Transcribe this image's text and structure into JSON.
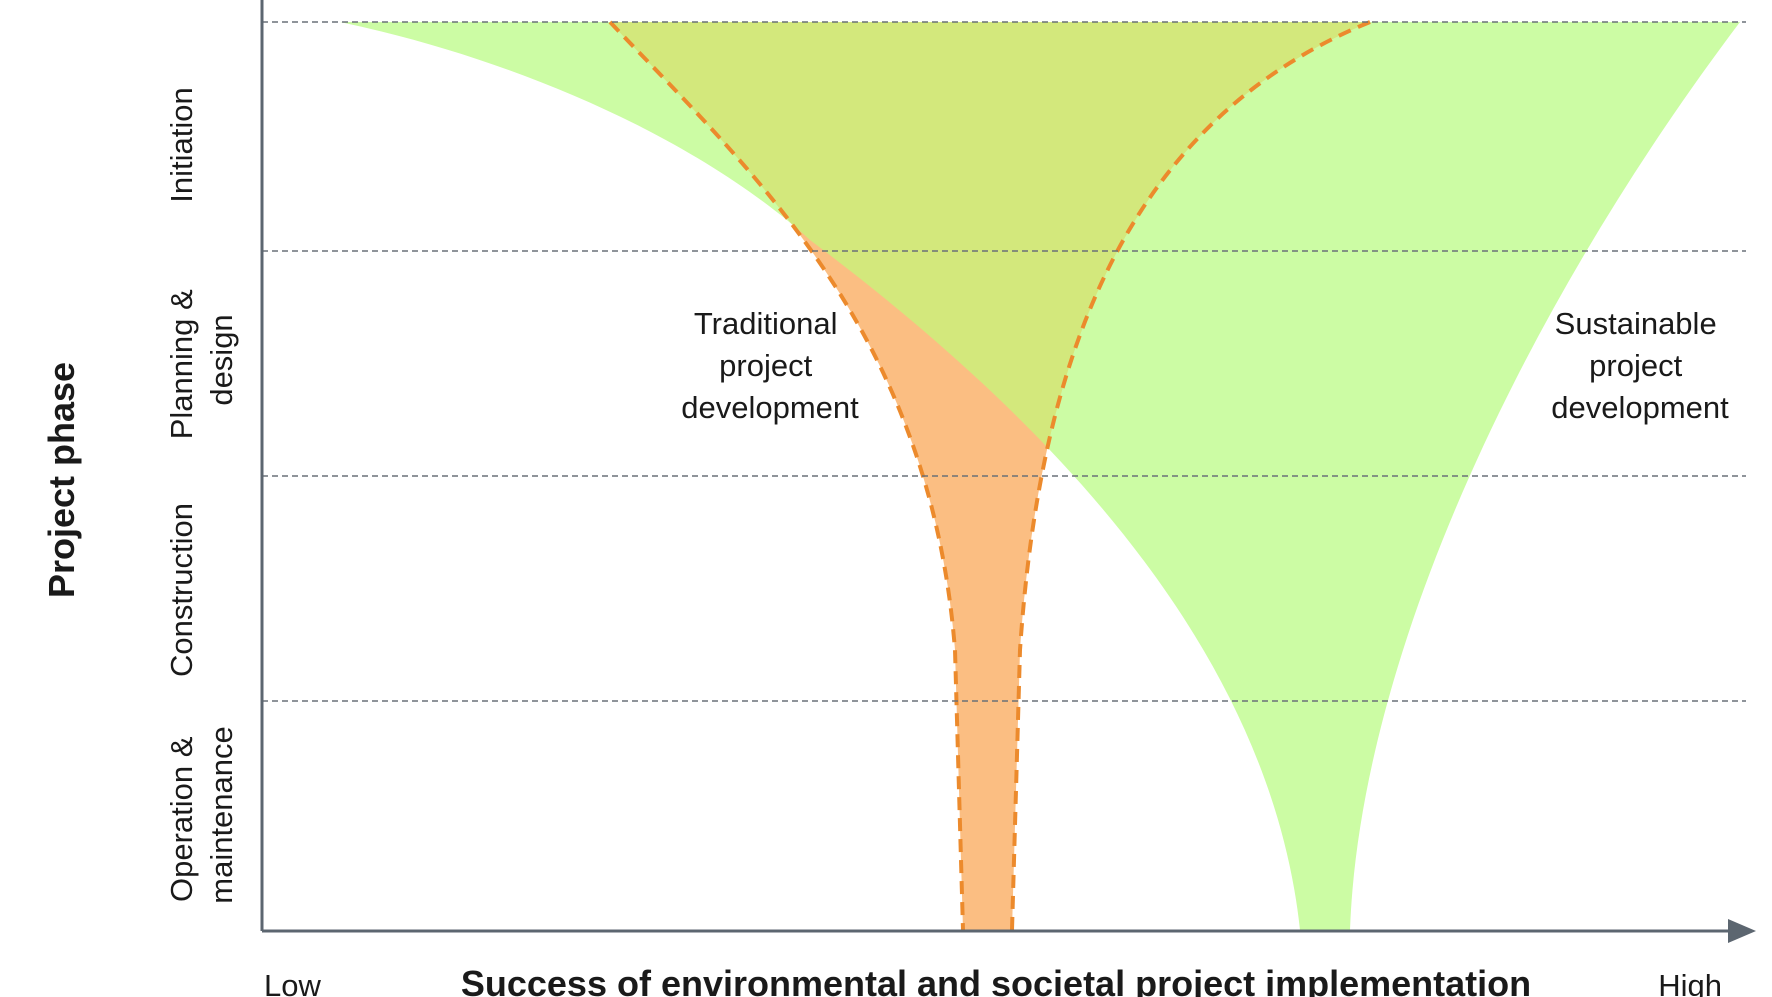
{
  "y_axis": {
    "title": "Project phase",
    "phases": [
      {
        "lines": [
          "Initiation"
        ]
      },
      {
        "lines": [
          "Planning &",
          "design"
        ]
      },
      {
        "lines": [
          "Construction"
        ]
      },
      {
        "lines": [
          "Operation &",
          "maintenance"
        ]
      }
    ]
  },
  "x_axis": {
    "title": "Success of environmental and societal project implementation",
    "low_label": "Low",
    "high_label": "High"
  },
  "series": [
    {
      "lines": [
        "Traditional",
        "project",
        "development"
      ],
      "fill": "#fbbe82",
      "stroke": "#ec8a2c",
      "dashed": true
    },
    {
      "lines": [
        "Sustainable",
        "project",
        "development"
      ],
      "fill": "#ccfca4",
      "overlap_fill": "#d3e87c"
    }
  ],
  "colors": {
    "axis": "#5c6670",
    "gridline": "#6a7078",
    "text": "#1a1a1a"
  }
}
